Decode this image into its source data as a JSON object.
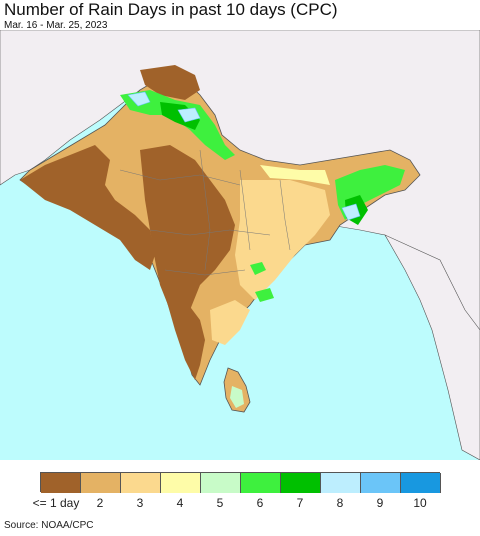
{
  "title": "Number of Rain Days in past 10 days (CPC)",
  "subtitle": "Mar. 16 - Mar. 25, 2023",
  "source": "Source: NOAA/CPC",
  "legend": {
    "labels": [
      "<= 1 day",
      "2",
      "3",
      "4",
      "5",
      "6",
      "7",
      "8",
      "9",
      "10"
    ],
    "colors": [
      "#a0622a",
      "#e4b264",
      "#fbd98e",
      "#fefca8",
      "#c8fbc8",
      "#3ef03e",
      "#00c000",
      "#bdeefe",
      "#6bc5f8",
      "#1898e0"
    ]
  },
  "colors": {
    "ocean": "#bdfcfd",
    "land_outside": "#f2eef2",
    "border": "#444444"
  }
}
